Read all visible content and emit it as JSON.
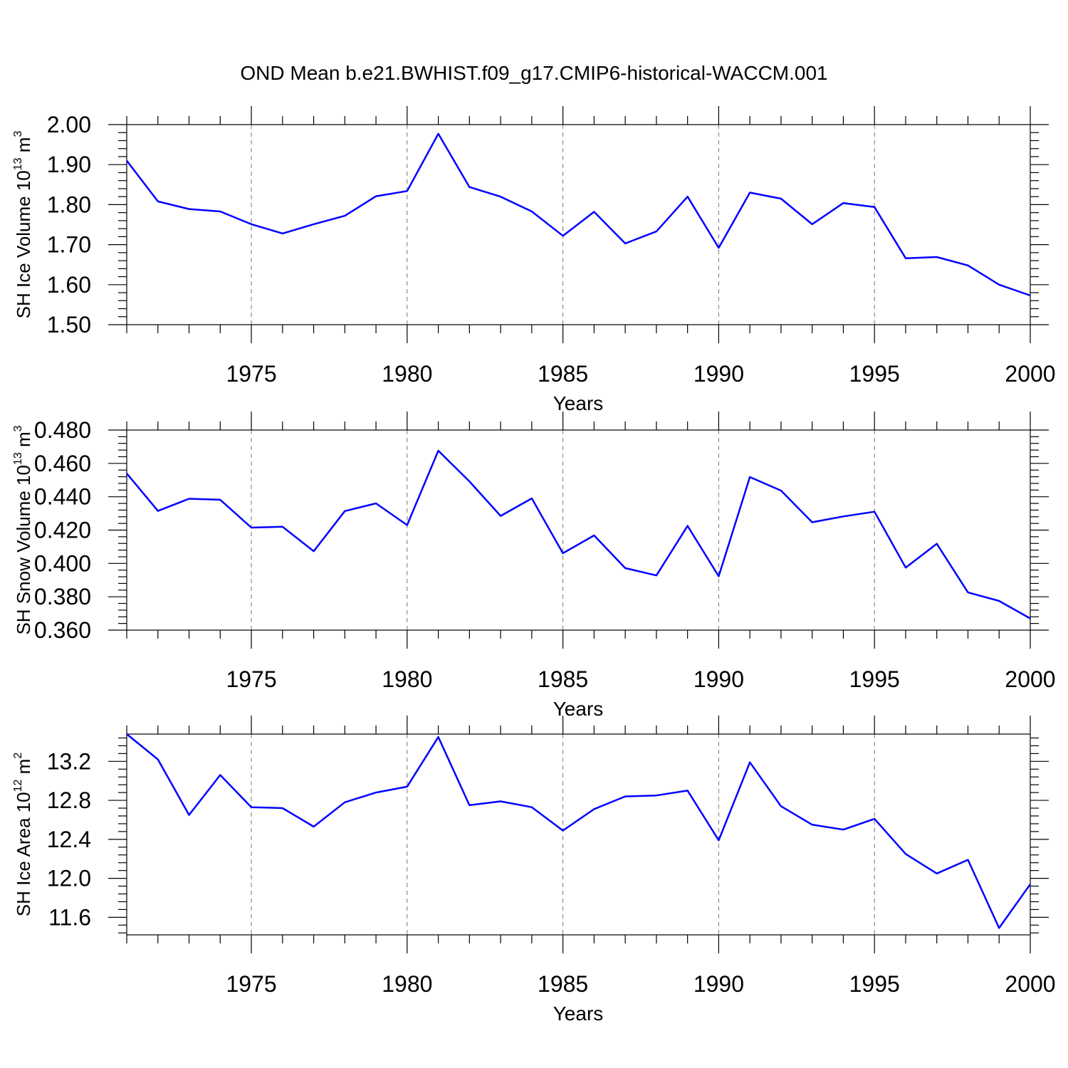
{
  "figure": {
    "title": "OND Mean b.e21.BWHIST.f09_g17.CMIP6-historical-WACCM.001"
  },
  "chart_data": [
    {
      "type": "line",
      "title": "",
      "xlabel": "Years",
      "ylabel": "SH Ice Volume 10",
      "ylabel_exp": "13",
      "ylabel_unit": " m",
      "ylabel_unit_exp": "3",
      "xlim": [
        1971,
        2000
      ],
      "ylim": [
        1.5,
        2.0
      ],
      "yticks": [
        1.5,
        1.6,
        1.7,
        1.8,
        1.9,
        2.0
      ],
      "ytick_labels": [
        "1.50",
        "1.60",
        "1.70",
        "1.80",
        "1.90",
        "2.00"
      ],
      "yminor_step": 0.02,
      "xticks": [
        1975,
        1980,
        1985,
        1990,
        1995,
        2000
      ],
      "xtick_labels": [
        "1975",
        "1980",
        "1985",
        "1990",
        "1995",
        "2000"
      ],
      "grid_x": [
        1975,
        1980,
        1985,
        1990,
        1995
      ],
      "series": [
        {
          "name": "SH Ice Volume",
          "color": "#0000ff",
          "x": [
            1971,
            1972,
            1973,
            1974,
            1975,
            1976,
            1977,
            1978,
            1979,
            1980,
            1981,
            1982,
            1983,
            1984,
            1985,
            1986,
            1987,
            1988,
            1989,
            1990,
            1991,
            1992,
            1993,
            1994,
            1995,
            1996,
            1997,
            1998,
            1999,
            2000
          ],
          "y": [
            1.91,
            1.808,
            1.789,
            1.783,
            1.751,
            1.728,
            1.751,
            1.772,
            1.821,
            1.834,
            1.977,
            1.844,
            1.82,
            1.783,
            1.722,
            1.782,
            1.703,
            1.733,
            1.82,
            1.692,
            1.83,
            1.815,
            1.751,
            1.804,
            1.794,
            1.666,
            1.669,
            1.648,
            1.6,
            1.573
          ]
        }
      ]
    },
    {
      "type": "line",
      "title": "",
      "xlabel": "Years",
      "ylabel": "SH Snow Volume 10",
      "ylabel_exp": "13",
      "ylabel_unit": " m",
      "ylabel_unit_exp": "3",
      "xlim": [
        1971,
        2000
      ],
      "ylim": [
        0.36,
        0.48
      ],
      "yticks": [
        0.36,
        0.38,
        0.4,
        0.42,
        0.44,
        0.46,
        0.48
      ],
      "ytick_labels": [
        "0.360",
        "0.380",
        "0.400",
        "0.420",
        "0.440",
        "0.460",
        "0.480"
      ],
      "yminor_step": 0.004,
      "xticks": [
        1975,
        1980,
        1985,
        1990,
        1995,
        2000
      ],
      "xtick_labels": [
        "1975",
        "1980",
        "1985",
        "1990",
        "1995",
        "2000"
      ],
      "grid_x": [
        1975,
        1980,
        1985,
        1990,
        1995
      ],
      "series": [
        {
          "name": "SH Snow Volume",
          "color": "#0000ff",
          "x": [
            1971,
            1972,
            1973,
            1974,
            1975,
            1976,
            1977,
            1978,
            1979,
            1980,
            1981,
            1982,
            1983,
            1984,
            1985,
            1986,
            1987,
            1988,
            1989,
            1990,
            1991,
            1992,
            1993,
            1994,
            1995,
            1996,
            1997,
            1998,
            1999,
            2000
          ],
          "y": [
            0.454,
            0.4315,
            0.4388,
            0.4382,
            0.4215,
            0.422,
            0.4073,
            0.4314,
            0.436,
            0.423,
            0.4676,
            0.4492,
            0.4285,
            0.439,
            0.4061,
            0.4168,
            0.3972,
            0.3928,
            0.4225,
            0.3923,
            0.4518,
            0.4437,
            0.4247,
            0.4282,
            0.431,
            0.3975,
            0.4118,
            0.3826,
            0.3775,
            0.367
          ]
        }
      ]
    },
    {
      "type": "line",
      "title": "",
      "xlabel": "Years",
      "ylabel": "SH Ice Area 10",
      "ylabel_exp": "12",
      "ylabel_unit": " m",
      "ylabel_unit_exp": "2",
      "xlim": [
        1971,
        2000
      ],
      "ylim": [
        11.42,
        13.48
      ],
      "yticks": [
        11.6,
        12.0,
        12.4,
        12.8,
        13.2
      ],
      "ytick_labels": [
        "11.6",
        "12.0",
        "12.4",
        "12.8",
        "13.2"
      ],
      "yminor_step": 0.08,
      "xticks": [
        1975,
        1980,
        1985,
        1990,
        1995,
        2000
      ],
      "xtick_labels": [
        "1975",
        "1980",
        "1985",
        "1990",
        "1995",
        "2000"
      ],
      "grid_x": [
        1975,
        1980,
        1985,
        1990,
        1995
      ],
      "series": [
        {
          "name": "SH Ice Area",
          "color": "#0000ff",
          "x": [
            1971,
            1972,
            1973,
            1974,
            1975,
            1976,
            1977,
            1978,
            1979,
            1980,
            1981,
            1982,
            1983,
            1984,
            1985,
            1986,
            1987,
            1988,
            1989,
            1990,
            1991,
            1992,
            1993,
            1994,
            1995,
            1996,
            1997,
            1998,
            1999,
            2000
          ],
          "y": [
            13.48,
            13.22,
            12.65,
            13.06,
            12.73,
            12.72,
            12.53,
            12.78,
            12.88,
            12.94,
            13.45,
            12.75,
            12.79,
            12.73,
            12.49,
            12.71,
            12.84,
            12.85,
            12.9,
            12.39,
            13.19,
            12.74,
            12.55,
            12.5,
            12.61,
            12.25,
            12.05,
            12.19,
            11.49,
            11.94
          ]
        }
      ]
    }
  ]
}
